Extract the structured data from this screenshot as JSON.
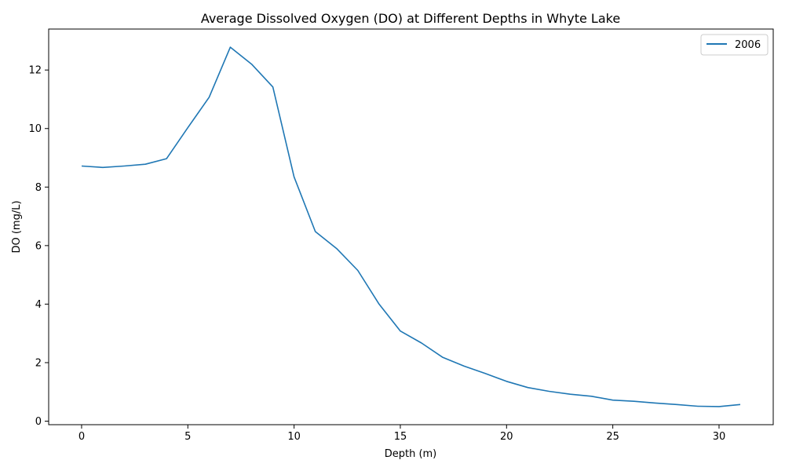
{
  "chart_data": {
    "type": "line",
    "title": "Average Dissolved Oxygen (DO) at Different Depths in Whyte Lake",
    "xlabel": "Depth (m)",
    "ylabel": "DO (mg/L)",
    "xlim": [
      -1.55,
      32.55
    ],
    "ylim": [
      -0.12,
      13.4
    ],
    "xticks": [
      0,
      5,
      10,
      15,
      20,
      25,
      30
    ],
    "yticks": [
      0,
      2,
      4,
      6,
      8,
      10,
      12
    ],
    "xtick_labels": [
      "0",
      "5",
      "10",
      "15",
      "20",
      "25",
      "30"
    ],
    "ytick_labels": [
      "0",
      "2",
      "4",
      "6",
      "8",
      "10",
      "12"
    ],
    "grid": false,
    "legend_position": "top-right",
    "series": [
      {
        "name": "2006",
        "color": "#1f77b4",
        "x": [
          0,
          1,
          2,
          3,
          4,
          5,
          6,
          7,
          8,
          9,
          10,
          11,
          12,
          13,
          14,
          15,
          16,
          17,
          18,
          19,
          20,
          21,
          22,
          23,
          24,
          25,
          26,
          27,
          28,
          29,
          30,
          31
        ],
        "y": [
          8.72,
          8.67,
          8.72,
          8.78,
          8.97,
          10.03,
          11.07,
          12.78,
          12.2,
          11.42,
          8.35,
          6.48,
          5.9,
          5.15,
          4.0,
          3.08,
          2.67,
          2.18,
          1.88,
          1.63,
          1.36,
          1.15,
          1.02,
          0.92,
          0.85,
          0.72,
          0.68,
          0.62,
          0.57,
          0.51,
          0.5,
          0.57
        ]
      }
    ]
  }
}
